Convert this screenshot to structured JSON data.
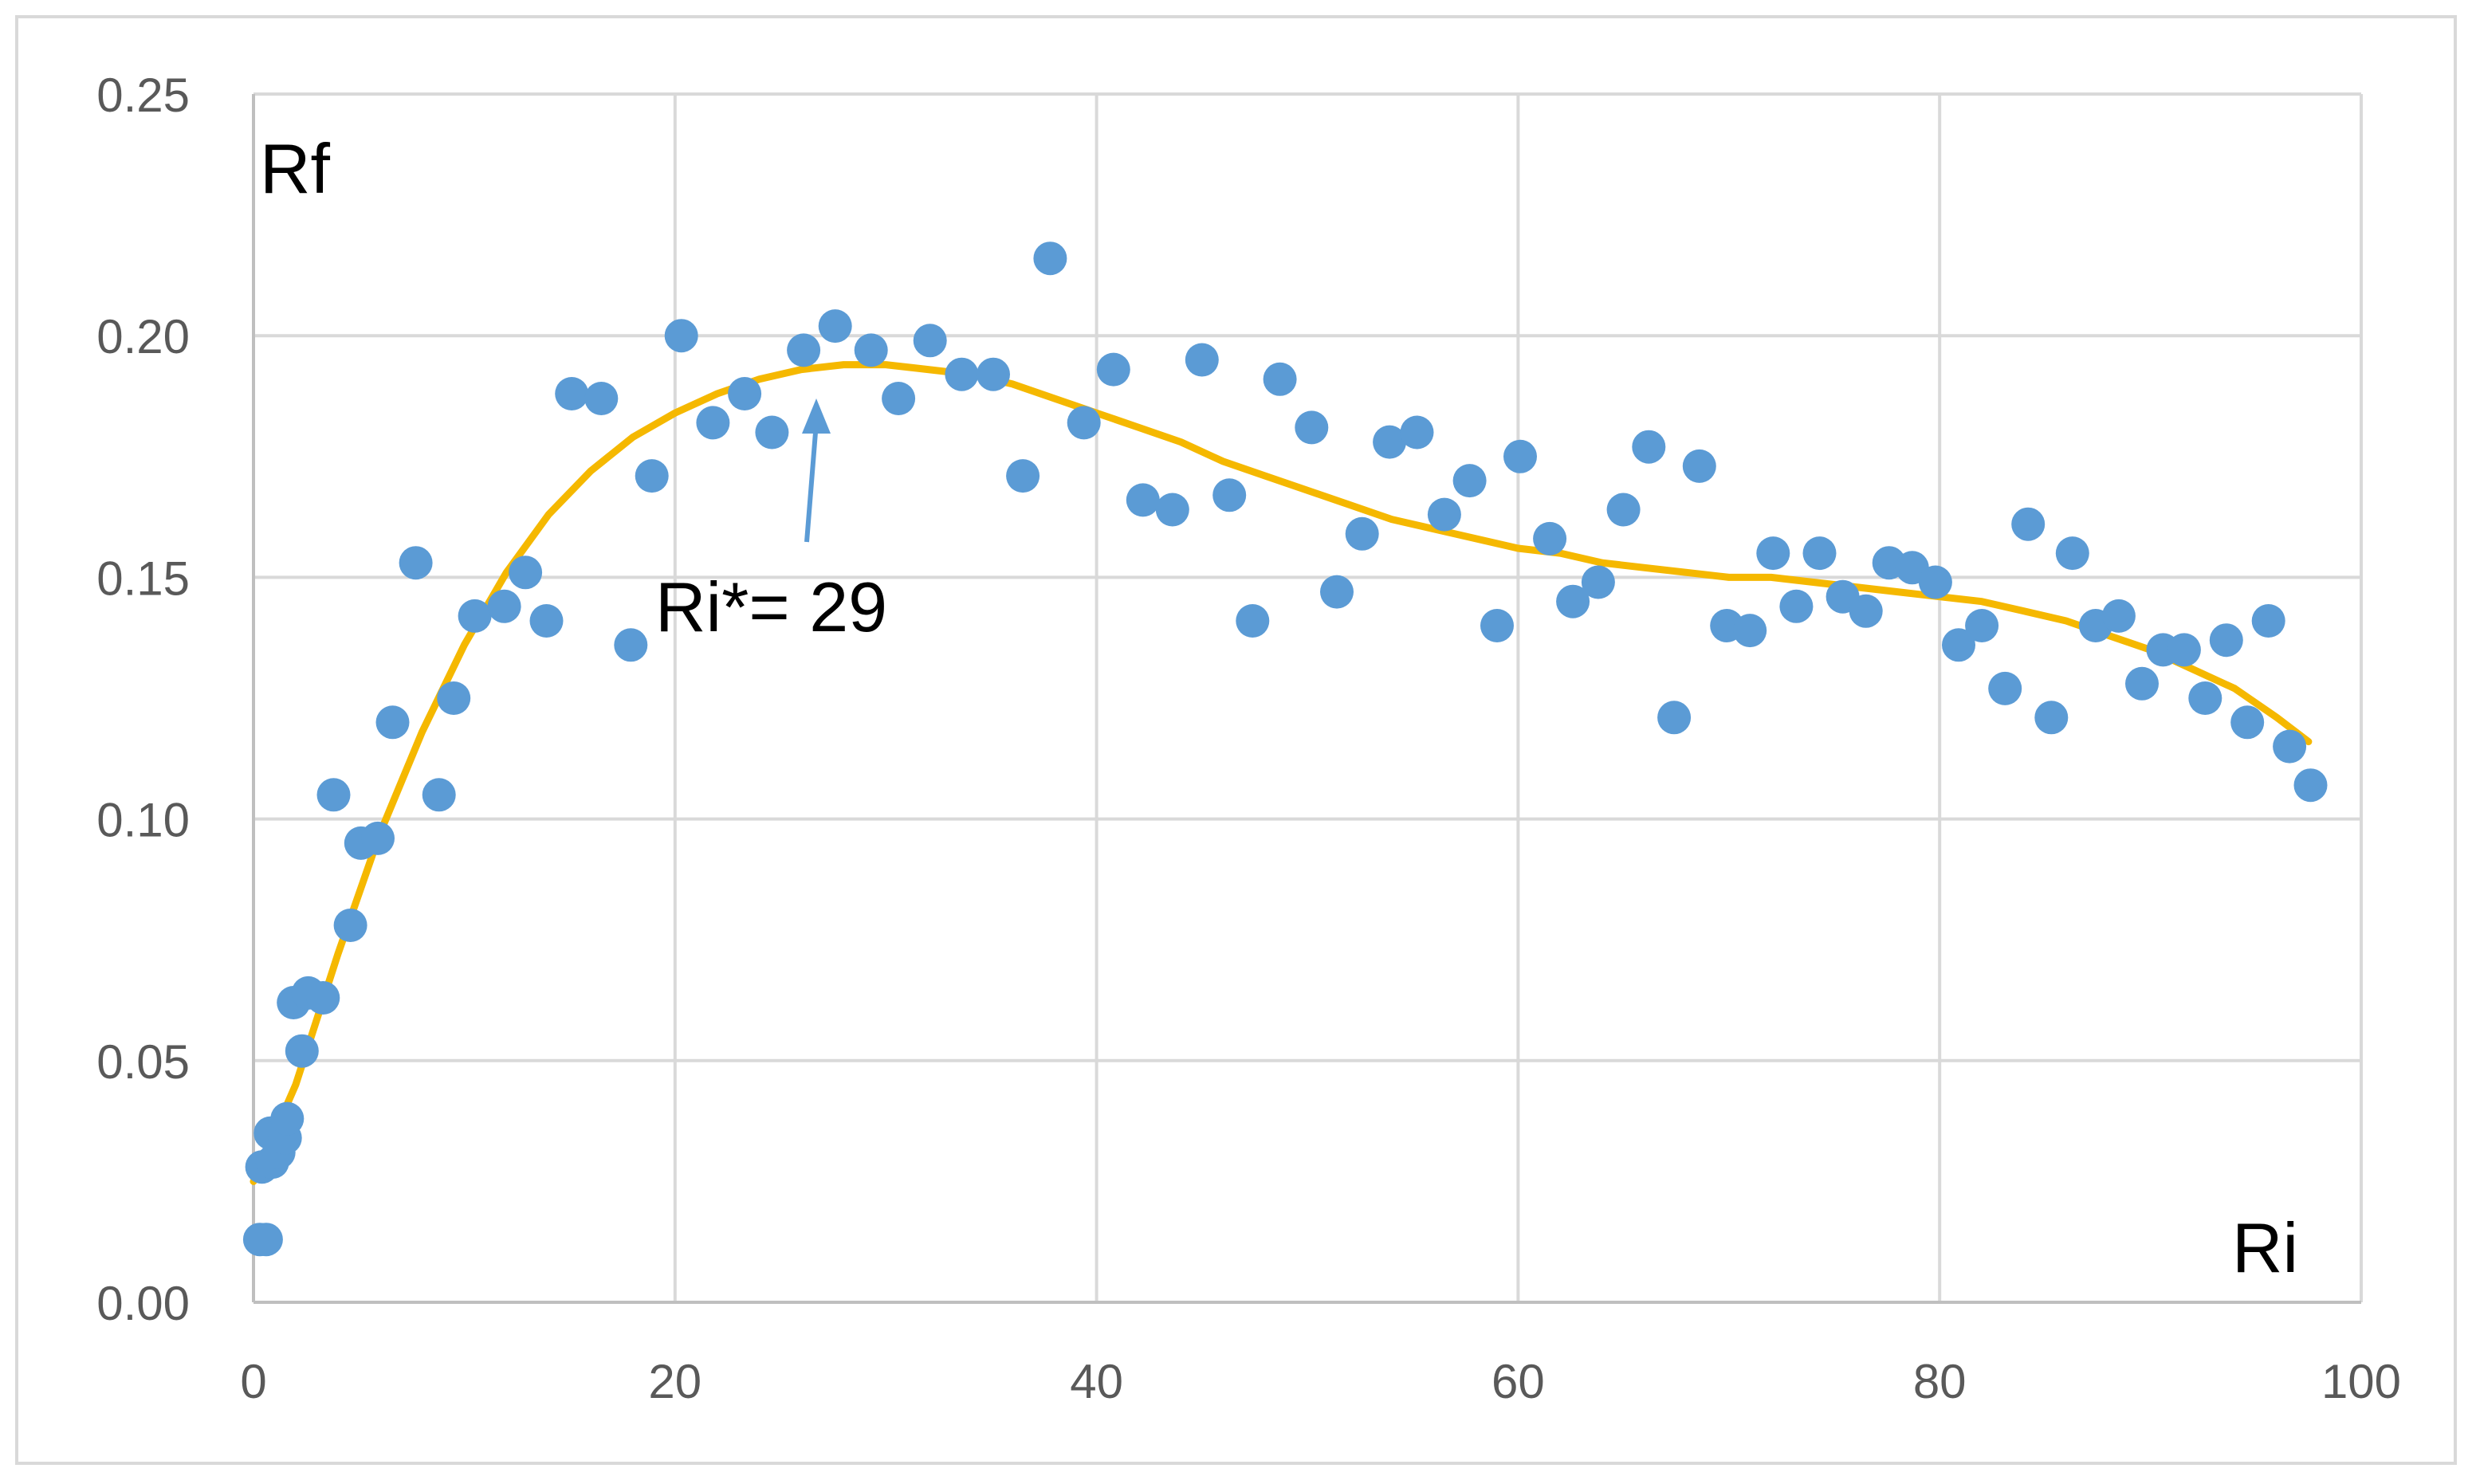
{
  "chart_data": {
    "type": "scatter",
    "title": "",
    "ylabel": "Rf",
    "xlabel": "Ri",
    "xlim": [
      0,
      100
    ],
    "ylim": [
      0,
      0.25
    ],
    "x_ticks": [
      "0",
      "20",
      "40",
      "60",
      "80",
      "100"
    ],
    "y_ticks": [
      "0.00",
      "0.05",
      "0.10",
      "0.15",
      "0.20",
      "0.25"
    ],
    "grid": true,
    "legend": "none",
    "colors": {
      "points": "#5b9bd5",
      "trendline": "#f5b800",
      "grid": "#d9d9d9",
      "axis": "#bfbfbf",
      "text": "#595959",
      "frame": "#d9d9d9"
    },
    "annotation": {
      "text": "Ri*= 29",
      "x": 29,
      "y": 0.194
    },
    "points": [
      {
        "x": 0.3,
        "y": 0.013
      },
      {
        "x": 0.6,
        "y": 0.013
      },
      {
        "x": 0.4,
        "y": 0.028
      },
      {
        "x": 0.9,
        "y": 0.029
      },
      {
        "x": 0.8,
        "y": 0.035
      },
      {
        "x": 1.2,
        "y": 0.031
      },
      {
        "x": 1.5,
        "y": 0.034
      },
      {
        "x": 1.6,
        "y": 0.038
      },
      {
        "x": 1.9,
        "y": 0.062
      },
      {
        "x": 2.3,
        "y": 0.052
      },
      {
        "x": 2.6,
        "y": 0.064
      },
      {
        "x": 3.3,
        "y": 0.063
      },
      {
        "x": 3.8,
        "y": 0.105
      },
      {
        "x": 4.6,
        "y": 0.078
      },
      {
        "x": 5.1,
        "y": 0.095
      },
      {
        "x": 5.9,
        "y": 0.096
      },
      {
        "x": 6.6,
        "y": 0.12
      },
      {
        "x": 7.7,
        "y": 0.153
      },
      {
        "x": 8.8,
        "y": 0.105
      },
      {
        "x": 9.5,
        "y": 0.125
      },
      {
        "x": 10.5,
        "y": 0.142
      },
      {
        "x": 11.9,
        "y": 0.144
      },
      {
        "x": 12.9,
        "y": 0.151
      },
      {
        "x": 13.9,
        "y": 0.141
      },
      {
        "x": 15.1,
        "y": 0.188
      },
      {
        "x": 16.5,
        "y": 0.187
      },
      {
        "x": 17.9,
        "y": 0.136
      },
      {
        "x": 18.9,
        "y": 0.171
      },
      {
        "x": 20.3,
        "y": 0.2
      },
      {
        "x": 21.8,
        "y": 0.182
      },
      {
        "x": 23.3,
        "y": 0.188
      },
      {
        "x": 24.6,
        "y": 0.18
      },
      {
        "x": 26.1,
        "y": 0.197
      },
      {
        "x": 27.6,
        "y": 0.202
      },
      {
        "x": 29.3,
        "y": 0.197
      },
      {
        "x": 30.6,
        "y": 0.187
      },
      {
        "x": 32.1,
        "y": 0.199
      },
      {
        "x": 33.6,
        "y": 0.192
      },
      {
        "x": 35.1,
        "y": 0.192
      },
      {
        "x": 36.5,
        "y": 0.171
      },
      {
        "x": 37.8,
        "y": 0.216
      },
      {
        "x": 39.4,
        "y": 0.182
      },
      {
        "x": 40.8,
        "y": 0.193
      },
      {
        "x": 42.2,
        "y": 0.166
      },
      {
        "x": 43.6,
        "y": 0.164
      },
      {
        "x": 45.0,
        "y": 0.195
      },
      {
        "x": 46.3,
        "y": 0.167
      },
      {
        "x": 47.4,
        "y": 0.141
      },
      {
        "x": 48.7,
        "y": 0.191
      },
      {
        "x": 50.2,
        "y": 0.181
      },
      {
        "x": 51.4,
        "y": 0.147
      },
      {
        "x": 52.6,
        "y": 0.159
      },
      {
        "x": 53.9,
        "y": 0.178
      },
      {
        "x": 55.2,
        "y": 0.18
      },
      {
        "x": 56.5,
        "y": 0.163
      },
      {
        "x": 57.7,
        "y": 0.17
      },
      {
        "x": 59.0,
        "y": 0.14
      },
      {
        "x": 60.1,
        "y": 0.175
      },
      {
        "x": 61.5,
        "y": 0.158
      },
      {
        "x": 62.6,
        "y": 0.145
      },
      {
        "x": 63.8,
        "y": 0.149
      },
      {
        "x": 65.0,
        "y": 0.164
      },
      {
        "x": 66.2,
        "y": 0.177
      },
      {
        "x": 67.4,
        "y": 0.121
      },
      {
        "x": 68.6,
        "y": 0.173
      },
      {
        "x": 69.9,
        "y": 0.14
      },
      {
        "x": 71.0,
        "y": 0.139
      },
      {
        "x": 72.1,
        "y": 0.155
      },
      {
        "x": 73.2,
        "y": 0.144
      },
      {
        "x": 74.3,
        "y": 0.155
      },
      {
        "x": 75.4,
        "y": 0.146
      },
      {
        "x": 76.5,
        "y": 0.143
      },
      {
        "x": 77.6,
        "y": 0.153
      },
      {
        "x": 78.7,
        "y": 0.152
      },
      {
        "x": 79.8,
        "y": 0.149
      },
      {
        "x": 80.9,
        "y": 0.136
      },
      {
        "x": 82.0,
        "y": 0.14
      },
      {
        "x": 83.1,
        "y": 0.127
      },
      {
        "x": 84.2,
        "y": 0.161
      },
      {
        "x": 85.3,
        "y": 0.121
      },
      {
        "x": 86.3,
        "y": 0.155
      },
      {
        "x": 87.4,
        "y": 0.14
      },
      {
        "x": 88.5,
        "y": 0.142
      },
      {
        "x": 89.6,
        "y": 0.128
      },
      {
        "x": 90.6,
        "y": 0.135
      },
      {
        "x": 91.6,
        "y": 0.135
      },
      {
        "x": 92.6,
        "y": 0.125
      },
      {
        "x": 93.6,
        "y": 0.137
      },
      {
        "x": 94.6,
        "y": 0.12
      },
      {
        "x": 95.6,
        "y": 0.141
      },
      {
        "x": 96.6,
        "y": 0.115
      },
      {
        "x": 97.6,
        "y": 0.107
      }
    ],
    "trendline": [
      {
        "x": 0,
        "y": 0.025
      },
      {
        "x": 2,
        "y": 0.045
      },
      {
        "x": 4,
        "y": 0.072
      },
      {
        "x": 6,
        "y": 0.097
      },
      {
        "x": 8,
        "y": 0.118
      },
      {
        "x": 10,
        "y": 0.136
      },
      {
        "x": 12,
        "y": 0.151
      },
      {
        "x": 14,
        "y": 0.163
      },
      {
        "x": 16,
        "y": 0.172
      },
      {
        "x": 18,
        "y": 0.179
      },
      {
        "x": 20,
        "y": 0.184
      },
      {
        "x": 22,
        "y": 0.188
      },
      {
        "x": 24,
        "y": 0.191
      },
      {
        "x": 26,
        "y": 0.193
      },
      {
        "x": 28,
        "y": 0.194
      },
      {
        "x": 30,
        "y": 0.194
      },
      {
        "x": 32,
        "y": 0.193
      },
      {
        "x": 34,
        "y": 0.192
      },
      {
        "x": 36,
        "y": 0.19
      },
      {
        "x": 38,
        "y": 0.187
      },
      {
        "x": 40,
        "y": 0.184
      },
      {
        "x": 42,
        "y": 0.181
      },
      {
        "x": 44,
        "y": 0.178
      },
      {
        "x": 46,
        "y": 0.174
      },
      {
        "x": 48,
        "y": 0.171
      },
      {
        "x": 50,
        "y": 0.168
      },
      {
        "x": 52,
        "y": 0.165
      },
      {
        "x": 54,
        "y": 0.162
      },
      {
        "x": 56,
        "y": 0.16
      },
      {
        "x": 58,
        "y": 0.158
      },
      {
        "x": 60,
        "y": 0.156
      },
      {
        "x": 62,
        "y": 0.155
      },
      {
        "x": 64,
        "y": 0.153
      },
      {
        "x": 66,
        "y": 0.152
      },
      {
        "x": 68,
        "y": 0.151
      },
      {
        "x": 70,
        "y": 0.15
      },
      {
        "x": 72,
        "y": 0.15
      },
      {
        "x": 74,
        "y": 0.149
      },
      {
        "x": 76,
        "y": 0.148
      },
      {
        "x": 78,
        "y": 0.147
      },
      {
        "x": 80,
        "y": 0.146
      },
      {
        "x": 82,
        "y": 0.145
      },
      {
        "x": 84,
        "y": 0.143
      },
      {
        "x": 86,
        "y": 0.141
      },
      {
        "x": 88,
        "y": 0.138
      },
      {
        "x": 90,
        "y": 0.135
      },
      {
        "x": 92,
        "y": 0.131
      },
      {
        "x": 94,
        "y": 0.127
      },
      {
        "x": 96,
        "y": 0.121
      },
      {
        "x": 97.5,
        "y": 0.116
      }
    ]
  }
}
